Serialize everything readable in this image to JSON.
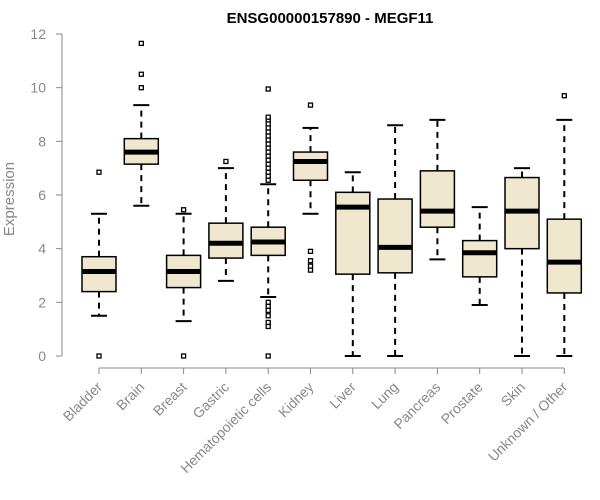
{
  "chart_data": {
    "type": "boxplot",
    "title": "ENSG00000157890 - MEGF11",
    "xlabel": "",
    "ylabel": "Expression",
    "ylim": [
      0,
      12
    ],
    "yticks": [
      0,
      2,
      4,
      6,
      8,
      10,
      12
    ],
    "grid": false,
    "categories": [
      "Bladder",
      "Brain",
      "Breast",
      "Gastric",
      "Hematopoietic cells",
      "Kidney",
      "Liver",
      "Lung",
      "Pancreas",
      "Prostate",
      "Skin",
      "Unknown / Other"
    ],
    "boxes": [
      {
        "name": "Bladder",
        "min": 1.5,
        "q1": 2.4,
        "median": 3.15,
        "q3": 3.7,
        "max": 5.3,
        "outliers": [
          6.85,
          0.0
        ]
      },
      {
        "name": "Brain",
        "min": 5.6,
        "q1": 7.15,
        "median": 7.6,
        "q3": 8.1,
        "max": 9.35,
        "outliers": [
          10.0,
          10.5,
          11.65
        ]
      },
      {
        "name": "Breast",
        "min": 1.3,
        "q1": 2.55,
        "median": 3.15,
        "q3": 3.75,
        "max": 5.3,
        "outliers": [
          5.45,
          0.0
        ]
      },
      {
        "name": "Gastric",
        "min": 2.8,
        "q1": 3.65,
        "median": 4.2,
        "q3": 4.95,
        "max": 7.0,
        "outliers": [
          7.25
        ]
      },
      {
        "name": "Hematopoietic cells",
        "min": 2.2,
        "q1": 3.75,
        "median": 4.25,
        "q3": 4.8,
        "max": 6.4,
        "outliers": [
          6.55,
          6.7,
          6.85,
          7.0,
          7.15,
          7.3,
          7.45,
          7.6,
          7.75,
          7.9,
          8.05,
          8.2,
          8.35,
          8.5,
          8.65,
          8.8,
          8.9,
          9.95,
          2.0,
          1.85,
          1.7,
          1.5,
          1.25,
          1.1,
          0.0
        ]
      },
      {
        "name": "Kidney",
        "min": 5.3,
        "q1": 6.55,
        "median": 7.25,
        "q3": 7.6,
        "max": 8.5,
        "outliers": [
          9.35,
          3.9,
          3.55,
          3.35,
          3.2
        ]
      },
      {
        "name": "Liver",
        "min": 0.0,
        "q1": 3.05,
        "median": 5.55,
        "q3": 6.1,
        "max": 6.85,
        "outliers": []
      },
      {
        "name": "Lung",
        "min": 0.0,
        "q1": 3.1,
        "median": 4.05,
        "q3": 5.85,
        "max": 8.6,
        "outliers": []
      },
      {
        "name": "Pancreas",
        "min": 3.6,
        "q1": 4.8,
        "median": 5.4,
        "q3": 6.9,
        "max": 8.8,
        "outliers": []
      },
      {
        "name": "Prostate",
        "min": 1.9,
        "q1": 2.95,
        "median": 3.85,
        "q3": 4.3,
        "max": 5.55,
        "outliers": []
      },
      {
        "name": "Skin",
        "min": 0.0,
        "q1": 4.0,
        "median": 5.4,
        "q3": 6.65,
        "max": 7.0,
        "outliers": []
      },
      {
        "name": "Unknown / Other",
        "min": 0.0,
        "q1": 2.35,
        "median": 3.5,
        "q3": 5.1,
        "max": 8.8,
        "outliers": [
          9.7
        ]
      }
    ]
  }
}
